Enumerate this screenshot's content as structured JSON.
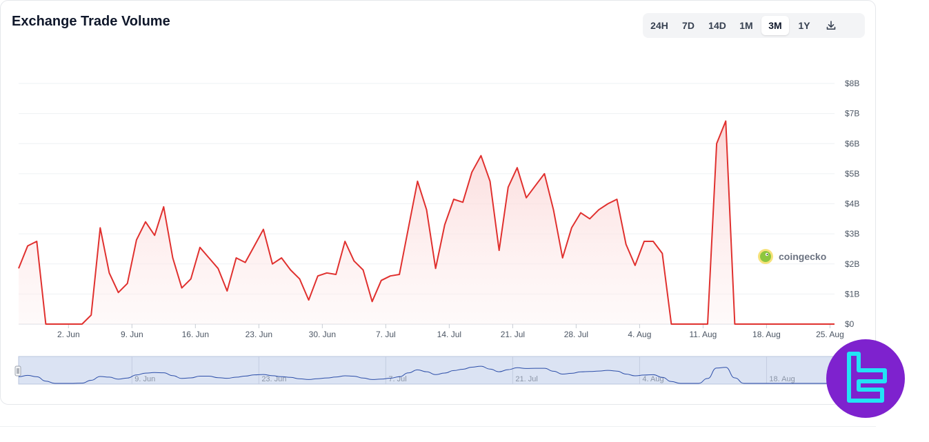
{
  "header": {
    "title": "Exchange Trade Volume",
    "tabs": [
      {
        "label": "24H",
        "active": false
      },
      {
        "label": "7D",
        "active": false
      },
      {
        "label": "14D",
        "active": false
      },
      {
        "label": "1M",
        "active": false
      },
      {
        "label": "3M",
        "active": true
      },
      {
        "label": "1Y",
        "active": false
      }
    ],
    "download_icon": "download-icon"
  },
  "watermark": {
    "text": "coingecko",
    "icon": "gecko-logo-icon"
  },
  "corner_logo": {
    "icon": "tradingfinder-logo-icon"
  },
  "colors": {
    "line": "#e0302e",
    "fill_top": "#fbd3d3",
    "grid": "#eef0f3",
    "navigator_bg": "#dbe3f3",
    "navigator_line": "#2b4da8",
    "logo_bg": "#7e22ce",
    "logo_glyph": "#22e3f5"
  },
  "chart_data": {
    "type": "area",
    "title": "Exchange Trade Volume",
    "x_unit": "day-of-period",
    "ylim": [
      0,
      8
    ],
    "y_unit": "$B",
    "y_ticks": [
      "$0",
      "$1B",
      "$2B",
      "$3B",
      "$4B",
      "$5B",
      "$6B",
      "$7B",
      "$8B"
    ],
    "x_ticks": [
      {
        "label": "2. Jun",
        "x": 5.5
      },
      {
        "label": "9. Jun",
        "x": 12.5
      },
      {
        "label": "16. Jun",
        "x": 19.5
      },
      {
        "label": "23. Jun",
        "x": 26.5
      },
      {
        "label": "30. Jun",
        "x": 33.5
      },
      {
        "label": "7. Jul",
        "x": 40.5
      },
      {
        "label": "14. Jul",
        "x": 47.5
      },
      {
        "label": "21. Jul",
        "x": 54.5
      },
      {
        "label": "28. Jul",
        "x": 61.5
      },
      {
        "label": "4. Aug",
        "x": 68.5
      },
      {
        "label": "11. Aug",
        "x": 75.5
      },
      {
        "label": "18. Aug",
        "x": 82.5
      },
      {
        "label": "25. Aug",
        "x": 89.5
      }
    ],
    "navigator_ticks": [
      {
        "label": "9. Jun",
        "x": 12.5
      },
      {
        "label": "23. Jun",
        "x": 26.5
      },
      {
        "label": "7. Jul",
        "x": 40.5
      },
      {
        "label": "21. Jul",
        "x": 54.5
      },
      {
        "label": "4. Aug",
        "x": 68.5
      },
      {
        "label": "18. Aug",
        "x": 82.5
      }
    ],
    "series": [
      {
        "x": [
          0,
          1,
          2,
          3,
          4,
          5,
          6,
          7,
          8,
          9,
          10,
          11,
          12,
          13,
          14,
          15,
          16,
          17,
          18,
          19,
          20,
          21,
          22,
          23,
          24,
          25,
          26,
          27,
          28,
          29,
          30,
          31,
          32,
          33,
          34,
          35,
          36,
          37,
          38,
          39,
          40,
          41,
          42,
          43,
          44,
          45,
          46,
          47,
          48,
          49,
          50,
          51,
          52,
          53,
          54,
          55,
          56,
          57,
          58,
          59,
          60,
          61,
          62,
          63,
          64,
          65,
          66,
          67,
          68,
          69,
          70,
          71,
          72,
          73,
          74,
          75,
          76,
          77,
          78,
          79,
          80,
          81,
          82,
          83,
          84,
          85,
          86,
          87,
          88,
          89,
          90
        ],
        "values": [
          1.85,
          2.6,
          2.75,
          0,
          0,
          0,
          0,
          0,
          0.3,
          3.2,
          1.7,
          1.05,
          1.35,
          2.8,
          3.4,
          2.95,
          3.9,
          2.2,
          1.2,
          1.5,
          2.55,
          2.2,
          1.85,
          1.1,
          2.2,
          2.05,
          2.6,
          3.15,
          2.0,
          2.2,
          1.8,
          1.5,
          0.8,
          1.6,
          1.7,
          1.65,
          2.75,
          2.1,
          1.8,
          0.75,
          1.45,
          1.6,
          1.65,
          3.2,
          4.75,
          3.8,
          1.85,
          3.3,
          4.15,
          4.05,
          5.05,
          5.6,
          4.75,
          2.45,
          4.55,
          5.2,
          4.2,
          4.6,
          5.0,
          3.8,
          2.2,
          3.2,
          3.7,
          3.5,
          3.8,
          4.0,
          4.15,
          2.65,
          1.95,
          2.75,
          2.75,
          2.35,
          0,
          0,
          0,
          0,
          0,
          6.0,
          6.75,
          0,
          0,
          0,
          0,
          0,
          0,
          0,
          0,
          0,
          0,
          0,
          0
        ]
      }
    ]
  }
}
